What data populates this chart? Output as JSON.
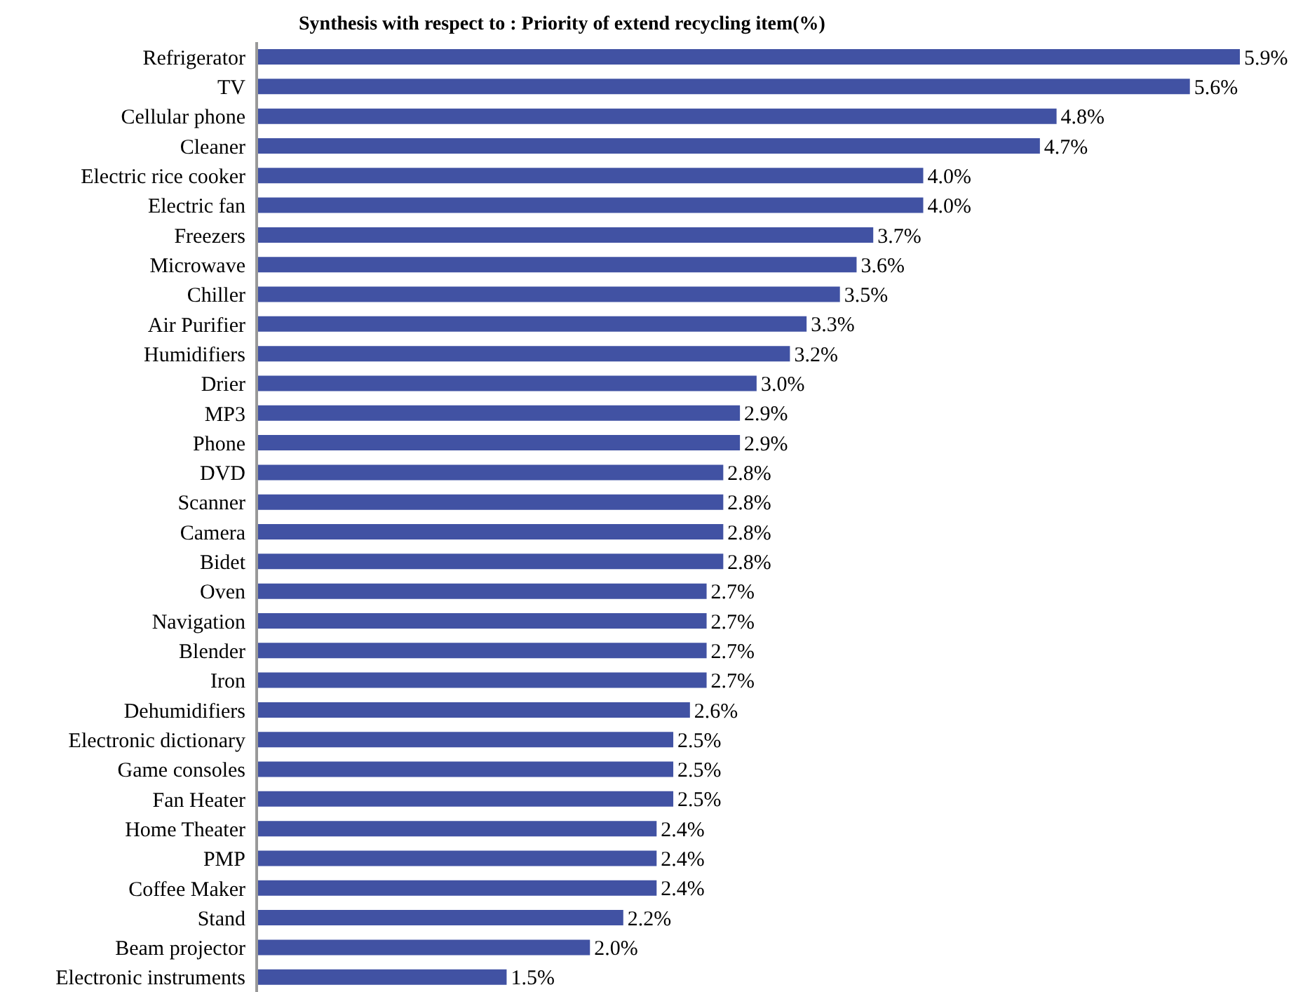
{
  "chart_data": {
    "type": "bar",
    "orientation": "horizontal",
    "title": "Synthesis with respect to :  Priority of extend recycling item(%)",
    "categories": [
      "Refrigerator",
      "TV",
      "Cellular phone",
      "Cleaner",
      "Electric rice cooker",
      "Electric fan",
      "Freezers",
      "Microwave",
      "Chiller",
      "Air Purifier",
      "Humidifiers",
      "Drier",
      "MP3",
      "Phone",
      "DVD",
      "Scanner",
      "Camera",
      "Bidet",
      "Oven",
      "Navigation",
      "Blender",
      "Iron",
      "Dehumidifiers",
      "Electronic dictionary",
      "Game consoles",
      "Fan Heater",
      "Home Theater",
      "PMP",
      "Coffee Maker",
      "Stand",
      "Beam projector",
      "Electronic instruments"
    ],
    "values": [
      5.9,
      5.6,
      4.8,
      4.7,
      4.0,
      4.0,
      3.7,
      3.6,
      3.5,
      3.3,
      3.2,
      3.0,
      2.9,
      2.9,
      2.8,
      2.8,
      2.8,
      2.8,
      2.7,
      2.7,
      2.7,
      2.7,
      2.6,
      2.5,
      2.5,
      2.5,
      2.4,
      2.4,
      2.4,
      2.2,
      2.0,
      1.5
    ],
    "value_labels": [
      "5.9%",
      "5.6%",
      "4.8%",
      "4.7%",
      "4.0%",
      "4.0%",
      "3.7%",
      "3.6%",
      "3.5%",
      "3.3%",
      "3.2%",
      "3.0%",
      "2.9%",
      "2.9%",
      "2.8%",
      "2.8%",
      "2.8%",
      "2.8%",
      "2.7%",
      "2.7%",
      "2.7%",
      "2.7%",
      "2.6%",
      "2.5%",
      "2.5%",
      "2.5%",
      "2.4%",
      "2.4%",
      "2.4%",
      "2.2%",
      "2.0%",
      "1.5%"
    ],
    "color": "#4152a3",
    "tick_labels": "y",
    "grid": false,
    "legend": false
  }
}
